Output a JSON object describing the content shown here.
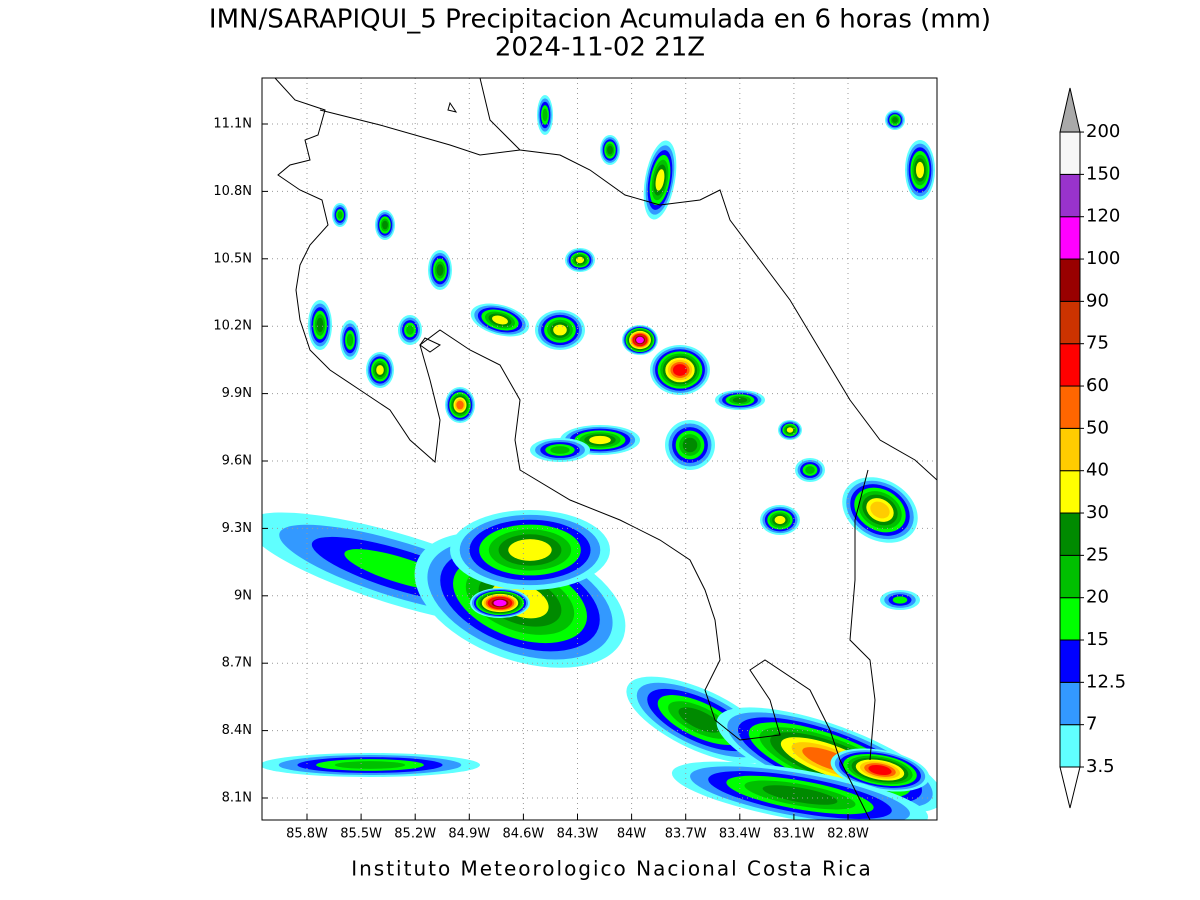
{
  "title": "IMN/SARAPIQUI_5 Precipitacion Acumulada en 6 horas (mm)",
  "subtitle": "2024-11-02 21Z",
  "footer": "Instituto Meteorologico Nacional Costa Rica",
  "lat_labels": [
    "11.1N",
    "10.8N",
    "10.5N",
    "10.2N",
    "9.9N",
    "9.6N",
    "9.3N",
    "9N",
    "8.7N",
    "8.4N",
    "8.1N"
  ],
  "lon_labels": [
    "85.8W",
    "85.5W",
    "85.2W",
    "84.9W",
    "84.6W",
    "84.3W",
    "84W",
    "83.7W",
    "83.4W",
    "83.1W",
    "82.8W"
  ],
  "colorbar": {
    "levels": [
      3.5,
      7,
      12.5,
      15,
      20,
      25,
      30,
      40,
      50,
      60,
      75,
      90,
      100,
      120,
      150,
      200
    ],
    "colors": [
      "#60ffff",
      "#3399ff",
      "#0000ff",
      "#00ff00",
      "#00c000",
      "#008a00",
      "#ffff00",
      "#ffcc00",
      "#ff6600",
      "#ff0000",
      "#cc3300",
      "#990000",
      "#ff00ff",
      "#9933cc",
      "#f6f6f6"
    ],
    "over_color": "#a9a9a9",
    "under_color": "#ffffff"
  }
}
